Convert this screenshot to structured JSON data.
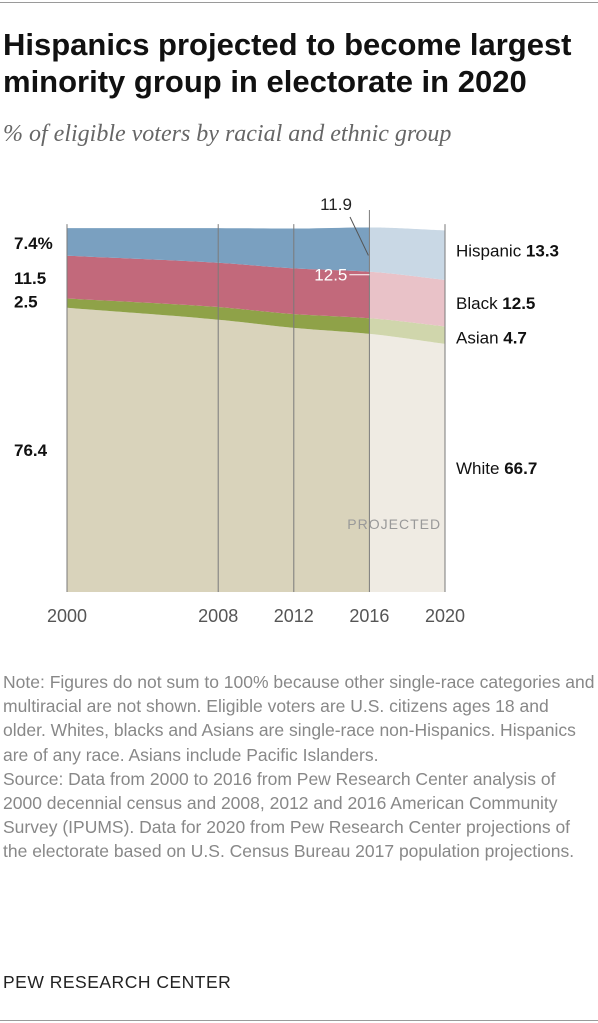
{
  "title": "Hispanics projected to become largest minority group in electorate in 2020",
  "subtitle": "% of eligible voters by racial and ethnic group",
  "note": "Note: Figures do not sum to 100% because other single-race categories and multiracial are not shown. Eligible voters are U.S. citizens ages 18 and older. Whites, blacks and Asians are single-race non-Hispanics. Hispanics are of any race. Asians include Pacific Islanders.",
  "source": "Source: Data from 2000 to 2016 from Pew Research Center analysis of 2000 decennial census and 2008, 2012 and 2016 American Community Survey (IPUMS). Data for 2020 from Pew Research Center projections of the electorate based on U.S. Census Bureau 2017 population projections.",
  "brand": "PEW RESEARCH CENTER",
  "chart_data": {
    "type": "area",
    "stacked": true,
    "x": [
      2000,
      2008,
      2012,
      2016,
      2020
    ],
    "xticks": [
      "2000",
      "2008",
      "2012",
      "2016",
      "2020"
    ],
    "projected_from": 2016,
    "projected_label": "PROJECTED",
    "ylim": [
      0,
      100
    ],
    "series": [
      {
        "name": "White",
        "values": [
          76.4,
          73.2,
          71.0,
          69.4,
          66.7
        ],
        "color": "#d9d3bb",
        "projected_color": "#efebe3"
      },
      {
        "name": "Asian",
        "values": [
          2.5,
          3.4,
          3.7,
          4.2,
          4.7
        ],
        "color": "#8fa248",
        "projected_color": "#d0d6ac"
      },
      {
        "name": "Black",
        "values": [
          11.5,
          11.9,
          12.3,
          12.5,
          12.5
        ],
        "color": "#c2697b",
        "projected_color": "#e9c2c8"
      },
      {
        "name": "Hispanic",
        "values": [
          7.4,
          9.3,
          10.7,
          11.9,
          13.3
        ],
        "color": "#7aa0c0",
        "projected_color": "#c9d8e5"
      }
    ],
    "start_labels": [
      "76.4",
      "2.5",
      "11.5",
      "7.4%"
    ],
    "end_labels": [
      {
        "name": "White",
        "value": "66.7"
      },
      {
        "name": "Asian",
        "value": "4.7"
      },
      {
        "name": "Black",
        "value": "12.5"
      },
      {
        "name": "Hispanic",
        "value": "13.3"
      }
    ],
    "callouts": [
      {
        "series": "Hispanic",
        "x": 2016,
        "text": "11.9"
      },
      {
        "series": "Black",
        "x": 2016,
        "text": "12.5"
      }
    ],
    "grid": "vertical lines at each labeled year"
  }
}
